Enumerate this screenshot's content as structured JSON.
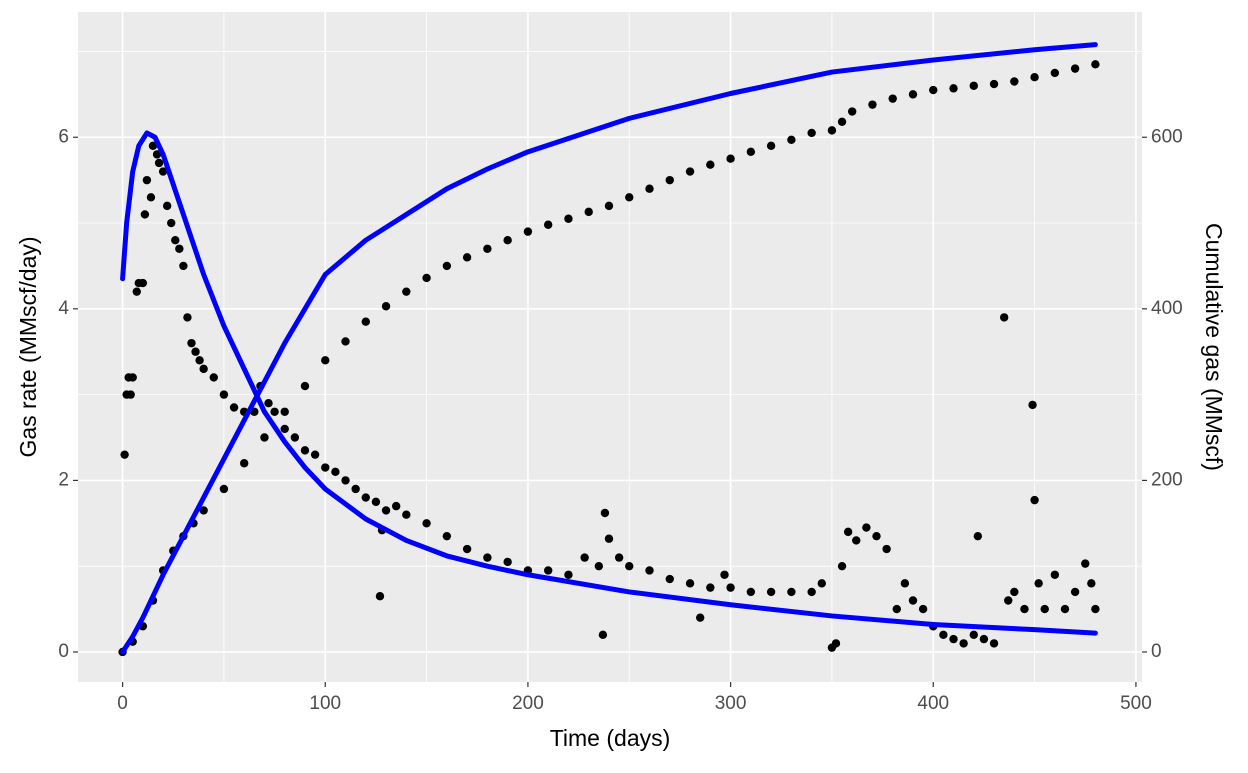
{
  "chart_data": {
    "type": "combo",
    "xlabel": "Time (days)",
    "ylabel": "Gas rate (MMscf/day)",
    "y2label": "Cumulative gas (MMscf)",
    "xlim": [
      -22,
      503
    ],
    "xticks": [
      0,
      100,
      200,
      300,
      400,
      500
    ],
    "ylim": [
      -0.35,
      7.46
    ],
    "yticks": [
      0,
      2,
      4,
      6
    ],
    "y2lim": [
      -35,
      746
    ],
    "y2ticks": [
      0,
      200,
      400,
      600
    ],
    "grid": true,
    "x_minor_grid": [
      50,
      150,
      250,
      350,
      450
    ],
    "y_minor_grid": [
      1,
      3,
      5,
      7
    ],
    "series": [
      {
        "type": "scatter",
        "color": "#000000",
        "x": [
          1,
          2,
          3,
          4,
          5,
          7,
          8,
          10,
          11,
          12,
          14,
          15,
          17,
          18,
          20,
          22,
          24,
          26,
          28,
          30,
          32,
          34,
          36,
          38,
          40,
          45,
          50,
          55,
          60,
          65,
          68,
          72,
          75,
          80,
          85,
          90,
          95,
          100,
          105,
          110,
          115,
          120,
          125,
          127,
          128,
          130,
          135,
          140,
          150,
          160,
          170,
          180,
          190,
          200,
          210,
          220,
          228,
          235,
          237,
          238,
          240,
          245,
          250,
          260,
          270,
          280,
          285,
          290,
          297,
          300,
          310,
          320,
          330,
          340,
          345,
          350,
          352,
          355,
          358,
          362,
          367,
          372,
          377,
          382,
          386,
          390,
          395,
          400,
          405,
          410,
          415,
          420,
          422,
          425,
          430,
          435,
          437,
          440,
          445,
          449,
          450,
          452,
          455,
          460,
          465,
          470,
          475,
          478,
          480
        ],
        "values": [
          2.3,
          3.0,
          3.2,
          3.0,
          3.2,
          4.2,
          4.3,
          4.3,
          5.1,
          5.5,
          5.3,
          5.9,
          5.8,
          5.7,
          5.6,
          5.2,
          5.0,
          4.8,
          4.7,
          4.5,
          3.9,
          3.6,
          3.5,
          3.4,
          3.3,
          3.2,
          3.0,
          2.85,
          2.8,
          2.8,
          3.1,
          2.9,
          2.8,
          2.6,
          2.5,
          2.35,
          2.3,
          2.15,
          2.1,
          2.0,
          1.9,
          1.8,
          1.75,
          0.65,
          1.42,
          1.65,
          1.7,
          1.6,
          1.5,
          1.35,
          1.2,
          1.1,
          1.05,
          0.95,
          0.95,
          0.9,
          1.1,
          1.0,
          0.2,
          1.62,
          1.32,
          1.1,
          1.0,
          0.95,
          0.85,
          0.8,
          0.4,
          0.75,
          0.9,
          0.75,
          0.7,
          0.7,
          0.7,
          0.7,
          0.8,
          0.05,
          0.1,
          1.0,
          1.4,
          1.3,
          1.45,
          1.35,
          1.2,
          0.5,
          0.8,
          0.6,
          0.5,
          0.3,
          0.2,
          0.15,
          0.1,
          0.2,
          1.35,
          0.15,
          0.1,
          3.9,
          0.6,
          0.7,
          0.5,
          2.88,
          1.77,
          0.8,
          0.5,
          0.9,
          0.5,
          0.7,
          1.03,
          0.8,
          0.5
        ]
      },
      {
        "type": "line",
        "color": "#0000ff",
        "x": [
          0,
          2,
          5,
          8,
          12,
          16,
          20,
          30,
          40,
          50,
          60,
          70,
          80,
          90,
          100,
          120,
          140,
          160,
          180,
          200,
          250,
          300,
          350,
          400,
          450,
          480
        ],
        "values": [
          4.35,
          5.0,
          5.6,
          5.9,
          6.05,
          6.0,
          5.8,
          5.1,
          4.4,
          3.8,
          3.3,
          2.8,
          2.45,
          2.15,
          1.9,
          1.55,
          1.3,
          1.12,
          1.0,
          0.9,
          0.7,
          0.55,
          0.42,
          0.32,
          0.26,
          0.22
        ]
      },
      {
        "type": "scatter",
        "color": "#000000",
        "axis": "y2",
        "x": [
          0,
          5,
          10,
          15,
          20,
          25,
          30,
          35,
          40,
          50,
          60,
          70,
          80,
          90,
          100,
          110,
          120,
          130,
          140,
          150,
          160,
          170,
          180,
          190,
          200,
          210,
          220,
          230,
          240,
          250,
          260,
          270,
          280,
          290,
          300,
          310,
          320,
          330,
          340,
          350,
          355,
          360,
          370,
          380,
          390,
          400,
          410,
          420,
          430,
          440,
          450,
          460,
          470,
          480
        ],
        "values": [
          0,
          12,
          30,
          60,
          95,
          118,
          135,
          150,
          165,
          190,
          220,
          250,
          280,
          310,
          340,
          362,
          385,
          403,
          420,
          436,
          450,
          460,
          470,
          480,
          490,
          498,
          505,
          513,
          520,
          530,
          540,
          550,
          560,
          568,
          575,
          583,
          590,
          597,
          605,
          608,
          618,
          630,
          638,
          645,
          650,
          655,
          657,
          660,
          662,
          665,
          670,
          675,
          680,
          685
        ]
      },
      {
        "type": "line",
        "color": "#0000ff",
        "axis": "y2",
        "x": [
          0,
          5,
          10,
          20,
          30,
          40,
          60,
          80,
          100,
          120,
          140,
          160,
          180,
          200,
          250,
          300,
          350,
          400,
          450,
          480
        ],
        "values": [
          0,
          18,
          40,
          90,
          135,
          180,
          270,
          360,
          440,
          480,
          510,
          540,
          563,
          583,
          622,
          651,
          676,
          690,
          702,
          708
        ]
      }
    ]
  }
}
